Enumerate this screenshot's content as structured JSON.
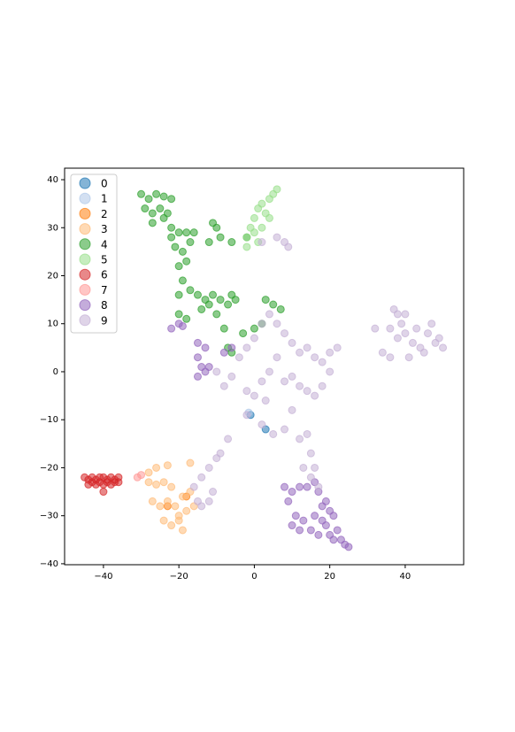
{
  "chart_data": {
    "type": "scatter",
    "xlim": [
      -50.3,
      55.5
    ],
    "ylim": [
      -40.2,
      42.4
    ],
    "xticks": [
      {
        "value": -40,
        "label": "−40"
      },
      {
        "value": -20,
        "label": "−20"
      },
      0,
      20,
      40
    ],
    "yticks": [
      {
        "value": -40,
        "label": "−40"
      },
      {
        "value": -30,
        "label": "−30"
      },
      {
        "value": -20,
        "label": "−20"
      },
      {
        "value": -10,
        "label": "−10"
      },
      0,
      10,
      20,
      30,
      40
    ],
    "grid": false,
    "legend": "upper left",
    "series": [
      {
        "name": "0",
        "color": "#1f77b4",
        "x": [
          -1,
          3
        ],
        "y": [
          -9,
          -12
        ]
      },
      {
        "name": "1",
        "color": "#aec7e8",
        "x": [
          -1.5
        ],
        "y": [
          -8.5
        ]
      },
      {
        "name": "2",
        "color": "#ff7f0e",
        "x": [
          -23,
          -18
        ],
        "y": [
          -28,
          -26
        ]
      },
      {
        "name": "3",
        "color": "#ffbb78",
        "x": [
          -28,
          -26,
          -24,
          -22,
          -27,
          -25,
          -23,
          -21,
          -19,
          -17,
          -20,
          -18,
          -16,
          -24,
          -22,
          -20,
          -26,
          -23,
          -17,
          -28,
          -19
        ],
        "y": [
          -23,
          -23.5,
          -23,
          -24,
          -27,
          -28,
          -27,
          -28,
          -26,
          -25,
          -30,
          -29,
          -28,
          -31,
          -32,
          -31,
          -20,
          -19.5,
          -19,
          -21,
          -33
        ]
      },
      {
        "name": "4",
        "color": "#2ca02c",
        "x": [
          -30,
          -28,
          -26,
          -24,
          -22,
          -29,
          -27,
          -25,
          -23,
          -27,
          -24,
          -22,
          -22,
          -20,
          -18,
          -16,
          -21,
          -19,
          -17,
          -20,
          -18,
          -19,
          -20,
          -17,
          -15,
          -13,
          -11,
          -9,
          -7,
          -5,
          -14,
          -12,
          -10,
          -6,
          -20,
          -18,
          -11,
          -10,
          -12,
          -9,
          -6,
          -8,
          -7,
          -6,
          -3,
          0,
          2,
          3,
          5,
          7,
          -2
        ],
        "y": [
          37,
          36,
          37,
          36.5,
          36,
          34,
          33,
          34,
          33,
          31,
          32,
          30,
          28,
          29,
          29,
          29,
          26,
          25,
          27,
          22,
          23,
          19,
          16,
          17,
          16,
          15,
          16,
          15,
          14,
          15,
          13,
          14,
          12,
          16,
          12,
          11,
          31,
          30,
          27,
          28,
          27,
          9,
          5,
          4,
          8,
          9,
          10,
          15,
          14,
          13,
          28
        ]
      },
      {
        "name": "5",
        "color": "#98df8a",
        "x": [
          -2,
          -1,
          0,
          1,
          2,
          3,
          4,
          5,
          6,
          0,
          2,
          -2,
          1,
          4
        ],
        "y": [
          28,
          30,
          32,
          34,
          35,
          33,
          36,
          37,
          38,
          29,
          30,
          26,
          27,
          32
        ]
      },
      {
        "name": "6",
        "color": "#d62728",
        "x": [
          -45,
          -44,
          -43,
          -42,
          -41,
          -40,
          -39,
          -38,
          -37,
          -36,
          -44,
          -43,
          -42,
          -41,
          -40,
          -39,
          -38,
          -37,
          -36,
          -40
        ],
        "y": [
          -22,
          -22.5,
          -22,
          -22.5,
          -22,
          -22,
          -22.5,
          -22,
          -22.5,
          -22,
          -23.5,
          -23,
          -23.5,
          -23,
          -23.5,
          -23,
          -23.5,
          -23,
          -23,
          -25
        ]
      },
      {
        "name": "7",
        "color": "#ff9896",
        "x": [
          -30,
          -31
        ],
        "y": [
          -21.5,
          -22
        ]
      },
      {
        "name": "8",
        "color": "#9467bd",
        "x": [
          -22,
          -20,
          -19,
          -15,
          -13,
          -15,
          -14,
          -13,
          -15,
          -12,
          -8,
          -6,
          8,
          10,
          12,
          9,
          11,
          13,
          15,
          12,
          10,
          14,
          16,
          17,
          18,
          19,
          20,
          21,
          19,
          20,
          22,
          23,
          24,
          25,
          21,
          17,
          16,
          18
        ],
        "y": [
          9,
          10,
          9.5,
          6,
          5,
          3,
          1,
          0,
          -1,
          1,
          4,
          5,
          -24,
          -25,
          -24,
          -27,
          -30,
          -31,
          -33,
          -33,
          -32,
          -24,
          -23,
          -25,
          -28,
          -27,
          -29,
          -30,
          -32,
          -34,
          -33,
          -35,
          -36,
          -36.5,
          -35,
          -34,
          -30,
          -31
        ]
      },
      {
        "name": "9",
        "color": "#c5b0d5",
        "x": [
          32,
          34,
          36,
          37,
          38,
          39,
          40,
          42,
          44,
          46,
          48,
          50,
          49,
          45,
          41,
          43,
          47,
          38,
          36,
          40,
          -10,
          -8,
          -6,
          -4,
          -2,
          0,
          2,
          4,
          6,
          8,
          10,
          12,
          14,
          16,
          18,
          20,
          22,
          10,
          12,
          14,
          16,
          18,
          20,
          6,
          4,
          2,
          0,
          -2,
          3,
          8,
          -2,
          2,
          5,
          8,
          10,
          12,
          14,
          15,
          16,
          15,
          13,
          17,
          -10,
          -12,
          -14,
          -16,
          -15,
          -12,
          -9,
          -7,
          -14,
          -11,
          6,
          8,
          9,
          2
        ],
        "y": [
          9,
          4,
          3,
          13,
          12,
          10,
          8,
          6,
          5,
          8,
          6,
          5,
          7,
          4,
          3,
          9,
          10,
          7,
          9,
          12,
          0,
          -3,
          -1,
          3,
          5,
          7,
          10,
          12,
          10,
          8,
          6,
          4,
          5,
          3,
          2,
          4,
          5,
          -1,
          -3,
          -4,
          -5,
          -3,
          0,
          3,
          0,
          -2,
          -5,
          -4,
          -6,
          -2,
          -9,
          -11,
          -13,
          -12,
          -8,
          -14,
          -13,
          -17,
          -20,
          -22,
          -20,
          -24,
          -18,
          -20,
          -22,
          -24,
          -27,
          -27,
          -17,
          -14,
          -28,
          -25,
          28,
          27,
          26,
          27
        ]
      }
    ]
  }
}
